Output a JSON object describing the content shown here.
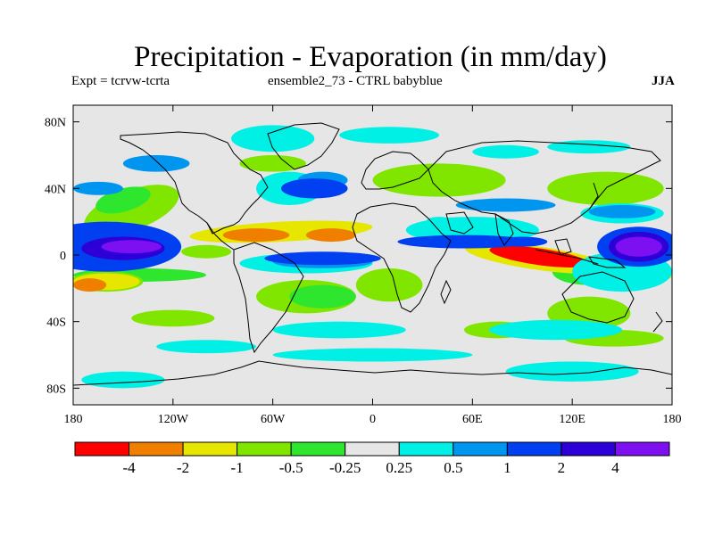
{
  "chart_data": {
    "type": "heatmap",
    "title": "Precipitation - Evaporation (in mm/day)",
    "subtitle_left": "Expt = tcrvw-tcrta",
    "subtitle_center": "ensemble2_73 - CTRL babyblue",
    "subtitle_right": "JJA",
    "xaxis": {
      "range": [
        -180,
        180
      ],
      "ticks": [
        {
          "value": -180,
          "label": "180"
        },
        {
          "value": -120,
          "label": "120W"
        },
        {
          "value": -60,
          "label": "60W"
        },
        {
          "value": 0,
          "label": "0"
        },
        {
          "value": 60,
          "label": "60E"
        },
        {
          "value": 120,
          "label": "120E"
        },
        {
          "value": 180,
          "label": "180"
        }
      ]
    },
    "yaxis": {
      "range": [
        -90,
        90
      ],
      "ticks": [
        {
          "value": 80,
          "label": "80N"
        },
        {
          "value": 40,
          "label": "40N"
        },
        {
          "value": 0,
          "label": "0"
        },
        {
          "value": -40,
          "label": "40S"
        },
        {
          "value": -80,
          "label": "80S"
        }
      ]
    },
    "colorbar": {
      "colors": [
        "#ff0000",
        "#f07f00",
        "#e6e600",
        "#80e600",
        "#2ee62e",
        "#e6e6e6",
        "#00f0e6",
        "#0096f0",
        "#0040f0",
        "#2d00d8",
        "#7c10f0"
      ],
      "labels": [
        "-4",
        "-2",
        "-1",
        "-0.5",
        "-0.25",
        "0.25",
        "0.5",
        "1",
        "2",
        "4"
      ]
    },
    "regions": [
      {
        "level": 4,
        "lon": -140,
        "lat": -12,
        "rx": 40,
        "ry": 4,
        "rot": 0
      },
      {
        "level": 3,
        "lon": -160,
        "lat": -16,
        "rx": 22,
        "ry": 6,
        "rot": 0
      },
      {
        "level": 3,
        "lon": -100,
        "lat": 2,
        "rx": 15,
        "ry": 4,
        "rot": 0
      },
      {
        "level": 3,
        "lon": -145,
        "lat": 27,
        "rx": 30,
        "ry": 12,
        "rot": -20
      },
      {
        "level": 3,
        "lon": -40,
        "lat": -25,
        "rx": 30,
        "ry": 10,
        "rot": 0
      },
      {
        "level": 3,
        "lon": -120,
        "lat": -38,
        "rx": 25,
        "ry": 5,
        "rot": 0
      },
      {
        "level": 3,
        "lon": 10,
        "lat": -18,
        "rx": 20,
        "ry": 10,
        "rot": 0
      },
      {
        "level": 3,
        "lon": 40,
        "lat": 45,
        "rx": 40,
        "ry": 10,
        "rot": 0
      },
      {
        "level": 3,
        "lon": 140,
        "lat": 40,
        "rx": 35,
        "ry": 10,
        "rot": 0
      },
      {
        "level": 3,
        "lon": 130,
        "lat": -35,
        "rx": 25,
        "ry": 10,
        "rot": 0
      },
      {
        "level": 3,
        "lon": 145,
        "lat": -50,
        "rx": 30,
        "ry": 5,
        "rot": 0
      },
      {
        "level": 3,
        "lon": 75,
        "lat": -45,
        "rx": 20,
        "ry": 5,
        "rot": 0
      },
      {
        "level": 3,
        "lon": -60,
        "lat": 55,
        "rx": 20,
        "ry": 5,
        "rot": 0
      },
      {
        "level": 4,
        "lon": -150,
        "lat": 33,
        "rx": 17,
        "ry": 7,
        "rot": -15
      },
      {
        "level": 4,
        "lon": -30,
        "lat": -25,
        "rx": 20,
        "ry": 7,
        "rot": 0
      },
      {
        "level": 4,
        "lon": 85,
        "lat": 15,
        "rx": 12,
        "ry": 5,
        "rot": 0
      },
      {
        "level": 4,
        "lon": 130,
        "lat": -10,
        "rx": 22,
        "ry": 8,
        "rot": 0
      },
      {
        "level": 2,
        "lon": -160,
        "lat": -16,
        "rx": 20,
        "ry": 5,
        "rot": 0
      },
      {
        "level": 2,
        "lon": -55,
        "lat": 14,
        "rx": 55,
        "ry": 6,
        "rot": -3
      },
      {
        "level": 2,
        "lon": 100,
        "lat": -2,
        "rx": 45,
        "ry": 7,
        "rot": 8
      },
      {
        "level": 2,
        "lon": 145,
        "lat": -10,
        "rx": 35,
        "ry": 4,
        "rot": 5
      },
      {
        "level": 1,
        "lon": -170,
        "lat": -18,
        "rx": 10,
        "ry": 4,
        "rot": 0
      },
      {
        "level": 1,
        "lon": -70,
        "lat": 12,
        "rx": 20,
        "ry": 4,
        "rot": 0
      },
      {
        "level": 1,
        "lon": -25,
        "lat": 12,
        "rx": 15,
        "ry": 4,
        "rot": 0
      },
      {
        "level": 0,
        "lon": 100,
        "lat": -1,
        "rx": 30,
        "ry": 5,
        "rot": 8
      },
      {
        "level": 0,
        "lon": 150,
        "lat": -10,
        "rx": 20,
        "ry": 3,
        "rot": 5
      },
      {
        "level": 7,
        "lon": -165,
        "lat": 40,
        "rx": 15,
        "ry": 4,
        "rot": 0
      },
      {
        "level": 7,
        "lon": -130,
        "lat": 55,
        "rx": 20,
        "ry": 5,
        "rot": 0
      },
      {
        "level": 6,
        "lon": -60,
        "lat": 70,
        "rx": 25,
        "ry": 8,
        "rot": 0
      },
      {
        "level": 6,
        "lon": 10,
        "lat": 72,
        "rx": 30,
        "ry": 5,
        "rot": 0
      },
      {
        "level": 6,
        "lon": 80,
        "lat": 62,
        "rx": 20,
        "ry": 4,
        "rot": 0
      },
      {
        "level": 6,
        "lon": 130,
        "lat": 65,
        "rx": 25,
        "ry": 4,
        "rot": 0
      },
      {
        "level": 6,
        "lon": -50,
        "lat": 40,
        "rx": 20,
        "ry": 10,
        "rot": 0
      },
      {
        "level": 6,
        "lon": 60,
        "lat": 15,
        "rx": 40,
        "ry": 8,
        "rot": 0
      },
      {
        "level": 6,
        "lon": 150,
        "lat": 25,
        "rx": 25,
        "ry": 6,
        "rot": 0
      },
      {
        "level": 6,
        "lon": 150,
        "lat": -10,
        "rx": 30,
        "ry": 12,
        "rot": 0
      },
      {
        "level": 6,
        "lon": -40,
        "lat": -5,
        "rx": 40,
        "ry": 6,
        "rot": 0
      },
      {
        "level": 6,
        "lon": -20,
        "lat": -45,
        "rx": 40,
        "ry": 5,
        "rot": 0
      },
      {
        "level": 6,
        "lon": 110,
        "lat": -45,
        "rx": 40,
        "ry": 6,
        "rot": 0
      },
      {
        "level": 6,
        "lon": 0,
        "lat": -60,
        "rx": 60,
        "ry": 4,
        "rot": 0
      },
      {
        "level": 6,
        "lon": 120,
        "lat": -70,
        "rx": 40,
        "ry": 6,
        "rot": 0
      },
      {
        "level": 6,
        "lon": -150,
        "lat": -75,
        "rx": 25,
        "ry": 5,
        "rot": 0
      },
      {
        "level": 6,
        "lon": -100,
        "lat": -55,
        "rx": 30,
        "ry": 4,
        "rot": 0
      },
      {
        "level": 6,
        "lon": 40,
        "lat": 20,
        "rx": 8,
        "ry": 3,
        "rot": 0
      },
      {
        "level": 7,
        "lon": -30,
        "lat": 45,
        "rx": 15,
        "ry": 5,
        "rot": 0
      },
      {
        "level": 7,
        "lon": -30,
        "lat": -4,
        "rx": 30,
        "ry": 4,
        "rot": 0
      },
      {
        "level": 7,
        "lon": 150,
        "lat": 26,
        "rx": 20,
        "ry": 4,
        "rot": 0
      },
      {
        "level": 7,
        "lon": 80,
        "lat": 30,
        "rx": 30,
        "ry": 4,
        "rot": 0
      },
      {
        "level": 8,
        "lon": -160,
        "lat": 5,
        "rx": 45,
        "ry": 15,
        "rot": 0
      },
      {
        "level": 8,
        "lon": -35,
        "lat": 40,
        "rx": 20,
        "ry": 6,
        "rot": 0
      },
      {
        "level": 8,
        "lon": -30,
        "lat": -2,
        "rx": 35,
        "ry": 4,
        "rot": 0
      },
      {
        "level": 8,
        "lon": 55,
        "lat": 8,
        "rx": 40,
        "ry": 4,
        "rot": 0
      },
      {
        "level": 8,
        "lon": 90,
        "lat": 8,
        "rx": 15,
        "ry": 3,
        "rot": 0
      },
      {
        "level": 8,
        "lon": 160,
        "lat": 5,
        "rx": 25,
        "ry": 12,
        "rot": 0
      },
      {
        "level": 9,
        "lon": -150,
        "lat": 4,
        "rx": 25,
        "ry": 7,
        "rot": 0
      },
      {
        "level": 10,
        "lon": -145,
        "lat": 5,
        "rx": 18,
        "ry": 4,
        "rot": 0
      },
      {
        "level": 9,
        "lon": 160,
        "lat": 5,
        "rx": 18,
        "ry": 9,
        "rot": 0
      },
      {
        "level": 10,
        "lon": 160,
        "lat": 5,
        "rx": 14,
        "ry": 6,
        "rot": 0
      }
    ]
  }
}
